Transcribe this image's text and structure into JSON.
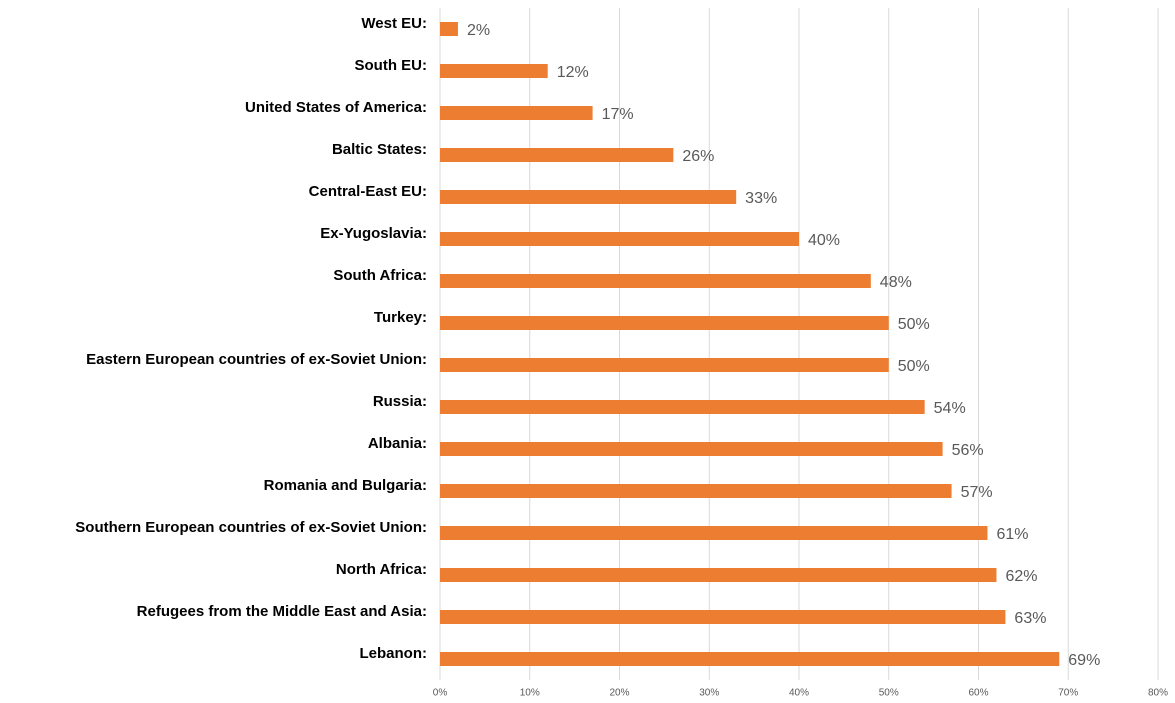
{
  "chart_data": {
    "type": "barh",
    "categories": [
      "West EU:",
      "South EU:",
      "United States of America:",
      "Baltic States:",
      "Central-East EU:",
      "Ex-Yugoslavia:",
      "South Africa:",
      "Turkey:",
      "Eastern European countries of ex-Soviet Union:",
      "Russia:",
      "Albania:",
      "Romania and Bulgaria:",
      "Southern European countries of ex-Soviet Union:",
      "North Africa:",
      "Refugees from the Middle East and Asia:",
      "Lebanon:"
    ],
    "values": [
      2,
      12,
      17,
      26,
      33,
      40,
      48,
      50,
      50,
      54,
      56,
      57,
      61,
      62,
      63,
      69
    ],
    "value_labels": [
      "2%",
      "12%",
      "17%",
      "26%",
      "33%",
      "40%",
      "48%",
      "50%",
      "50%",
      "54%",
      "56%",
      "57%",
      "61%",
      "62%",
      "63%",
      "69%"
    ],
    "color": "#ed7d31",
    "xlim": [
      0,
      80
    ],
    "xticks": [
      {
        "value": 0,
        "label": "0%"
      },
      {
        "value": 10,
        "label": "10%"
      },
      {
        "value": 20,
        "label": "20%"
      },
      {
        "value": 30,
        "label": "30%"
      },
      {
        "value": 40,
        "label": "40%"
      },
      {
        "value": 50,
        "label": "50%"
      },
      {
        "value": 60,
        "label": "60%"
      },
      {
        "value": 70,
        "label": "70%"
      },
      {
        "value": 80,
        "label": "80%"
      }
    ],
    "grid": true
  }
}
